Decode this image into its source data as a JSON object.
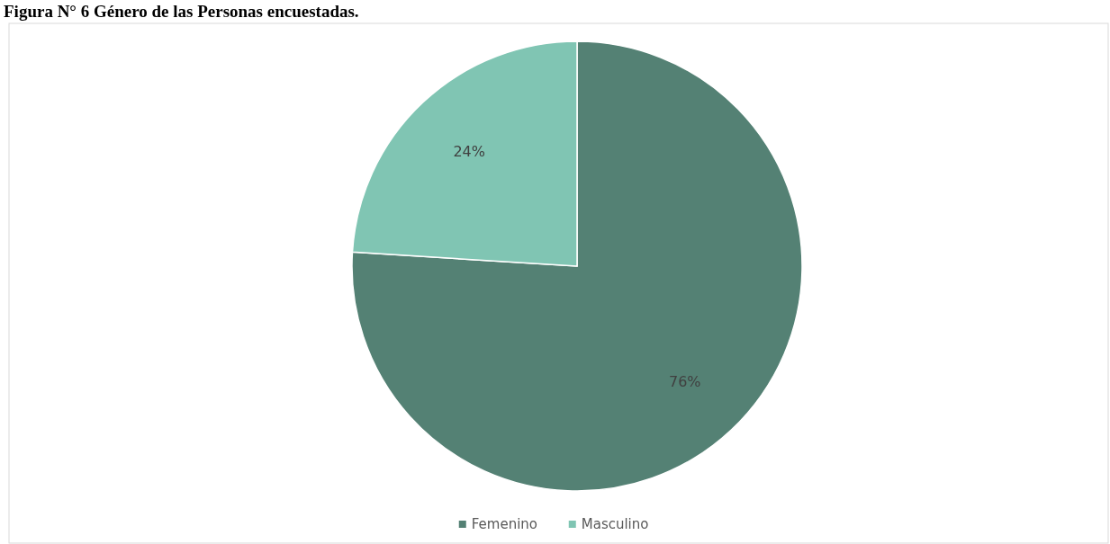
{
  "chart_data": {
    "type": "pie",
    "title": "Figura N° 6 Género de las Personas encuestadas.",
    "categories": [
      "Femenino",
      "Masculino"
    ],
    "values": [
      76,
      24
    ],
    "colors": [
      "#548174",
      "#80c5b3"
    ],
    "value_labels": [
      "76%",
      "24%"
    ],
    "legend": "bottom"
  }
}
